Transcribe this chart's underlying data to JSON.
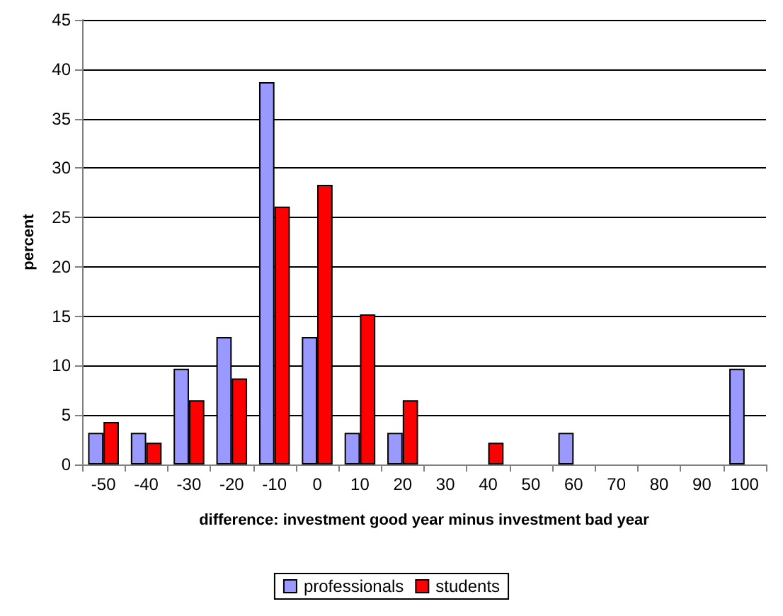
{
  "chart_data": {
    "type": "bar",
    "xlabel": "difference: investment good year minus investment bad year",
    "ylabel": "percent",
    "categories": [
      "-50",
      "-40",
      "-30",
      "-20",
      "-10",
      "0",
      "10",
      "20",
      "30",
      "40",
      "50",
      "60",
      "70",
      "80",
      "90",
      "100"
    ],
    "series": [
      {
        "name": "professionals",
        "color": "#9999ff",
        "values": [
          3.2,
          3.2,
          9.7,
          12.9,
          38.7,
          12.9,
          3.2,
          3.2,
          0,
          0,
          0,
          3.2,
          0,
          0,
          0,
          9.7
        ]
      },
      {
        "name": "students",
        "color": "#ff0000",
        "values": [
          4.3,
          2.2,
          6.5,
          8.7,
          26.1,
          28.3,
          15.2,
          6.5,
          0,
          2.2,
          0,
          0,
          0,
          0,
          0,
          0
        ]
      }
    ],
    "ylim": [
      0,
      45
    ],
    "yticks": [
      0,
      5,
      10,
      15,
      20,
      25,
      30,
      35,
      40,
      45
    ],
    "grid": "y",
    "legend": "bottom"
  }
}
